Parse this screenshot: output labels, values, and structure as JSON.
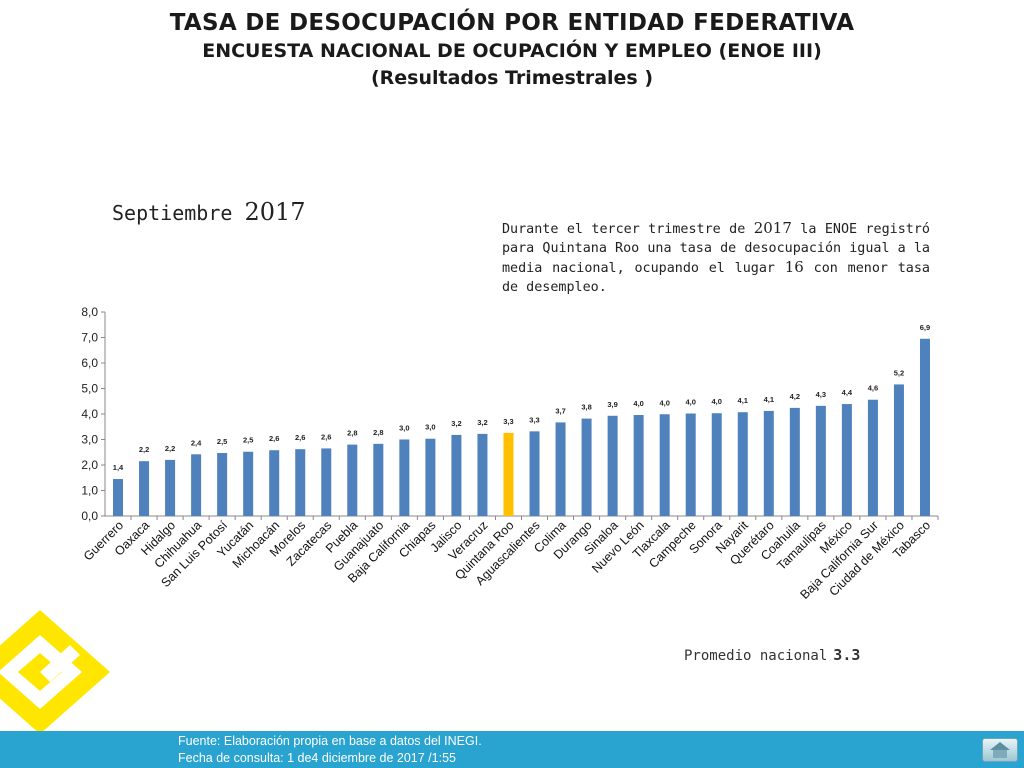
{
  "header": {
    "title": "TASA DE DESOCUPACIÓN POR ENTIDAD FEDERATIVA",
    "subtitle": "ENCUESTA NACIONAL DE OCUPACIÓN Y EMPLEO (ENOE III)",
    "subtitle2": "(Resultados Trimestrales  )"
  },
  "period": {
    "month": "Septiembre",
    "year": "2017"
  },
  "note": {
    "p1": "Durante el tercer trimestre de ",
    "year": "2017",
    "p2": " la ENOE registró para Quintana Roo una tasa de desocupación igual a la media nacional, ocupando el lugar ",
    "rank": "16",
    "p3": " con menor tasa de desempleo."
  },
  "promedio": {
    "label": "Promedio nacional",
    "value": "3.3"
  },
  "footer": {
    "source": "Fuente: Elaboración propia en base a datos del INEGI.",
    "date": "Fecha de consulta: 1 de4 diciembre de 2017 /1:55"
  },
  "colors": {
    "bar": "#4f81bd",
    "highlight": "#ffc000",
    "footer": "#29a3cf",
    "logo": "#ffe600"
  },
  "icons": {
    "home": "home-icon"
  },
  "chart_data": {
    "type": "bar",
    "categories": [
      "Guerrero",
      "Oaxaca",
      "Hidalgo",
      "Chihuahua",
      "San Luis Potosí",
      "Yucatán",
      "Michoacán",
      "Morelos",
      "Zacatecas",
      "Puebla",
      "Guanajuato",
      "Baja California",
      "Chiapas",
      "Jalisco",
      "Veracruz",
      "Quintana Roo",
      "Aguascalientes",
      "Colima",
      "Durango",
      "Sinaloa",
      "Nuevo León",
      "Tlaxcala",
      "Campeche",
      "Sonora",
      "Nayarit",
      "Querétaro",
      "Coahuila",
      "Tamaulipas",
      "México",
      "Baja California Sur",
      "Ciudad de México",
      "Tabasco"
    ],
    "values": [
      1.45,
      2.15,
      2.2,
      2.42,
      2.47,
      2.52,
      2.58,
      2.62,
      2.65,
      2.8,
      2.83,
      3.0,
      3.03,
      3.18,
      3.22,
      3.26,
      3.32,
      3.67,
      3.82,
      3.93,
      3.96,
      3.99,
      4.02,
      4.03,
      4.07,
      4.12,
      4.24,
      4.32,
      4.39,
      4.56,
      5.16,
      6.95
    ],
    "labels": [
      "1,4",
      "2,2",
      "2,2",
      "2,4",
      "2,5",
      "2,5",
      "2,6",
      "2,6",
      "2,6",
      "2,8",
      "2,8",
      "3,0",
      "3,0",
      "3,2",
      "3,2",
      "3,3",
      "3,3",
      "3,7",
      "3,8",
      "3,9",
      "4,0",
      "4,0",
      "4,0",
      "4,0",
      "4,1",
      "4,1",
      "4,2",
      "4,3",
      "4,4",
      "4,6",
      "5,2",
      "6,9"
    ],
    "highlight": "Quintana Roo",
    "ylim": [
      0,
      8
    ],
    "yticks": [
      "0,0",
      "1,0",
      "2,0",
      "3,0",
      "4,0",
      "5,0",
      "6,0",
      "7,0",
      "8,0"
    ],
    "grid": false,
    "legend": "none"
  }
}
